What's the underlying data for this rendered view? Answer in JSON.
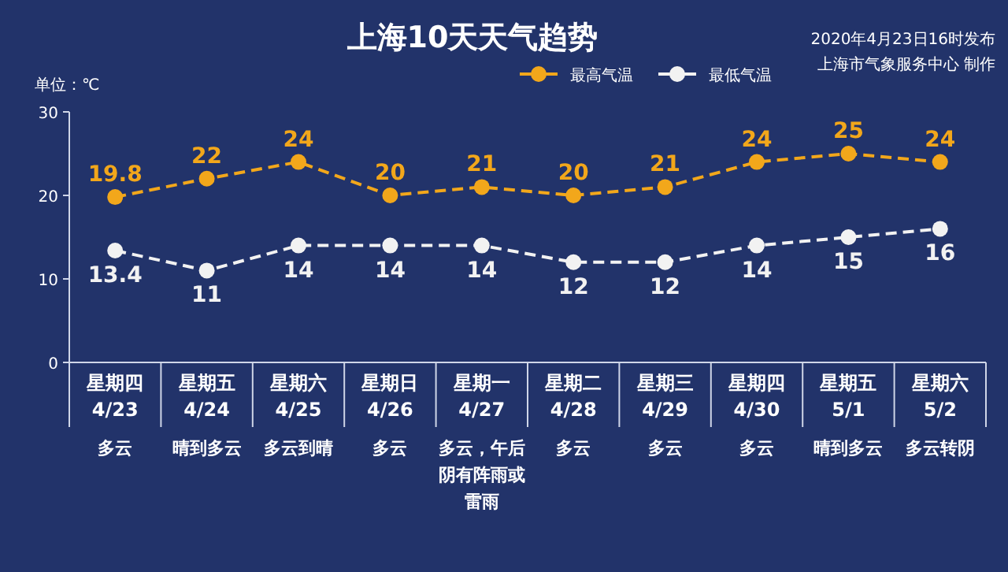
{
  "chart_data": {
    "type": "line",
    "title": "上海10天天气趋势",
    "ylabel": "单位：℃",
    "annotations": [
      "2020年4月23日16时发布",
      "上海市气象服务中心 制作"
    ],
    "categories": [
      "星期四\n4/23\n多云",
      "星期五\n4/24\n晴到多云",
      "星期六\n4/25\n多云到晴",
      "星期日\n4/26\n多云",
      "星期一\n4/27\n多云，午后阴有阵雨或雷雨",
      "星期二\n4/28\n多云",
      "星期三\n4/29\n多云",
      "星期四\n4/30\n多云",
      "星期五\n5/1\n晴到多云",
      "星期六\n5/2\n多云转阴"
    ],
    "series": [
      {
        "name": "最高气温",
        "color": "#f2a71b",
        "values": [
          19.8,
          22,
          24,
          20,
          21,
          20,
          21,
          24,
          25,
          24
        ]
      },
      {
        "name": "最低气温",
        "color": "#f2f2f2",
        "values": [
          13.4,
          11,
          14,
          14,
          14,
          12,
          12,
          14,
          15,
          16
        ]
      }
    ],
    "ylim": [
      0,
      30
    ],
    "yticks": [
      0,
      10,
      20,
      30
    ],
    "grid": false,
    "legend": "top",
    "marker": "circle",
    "line_style": "dashed",
    "data_labels": true
  }
}
